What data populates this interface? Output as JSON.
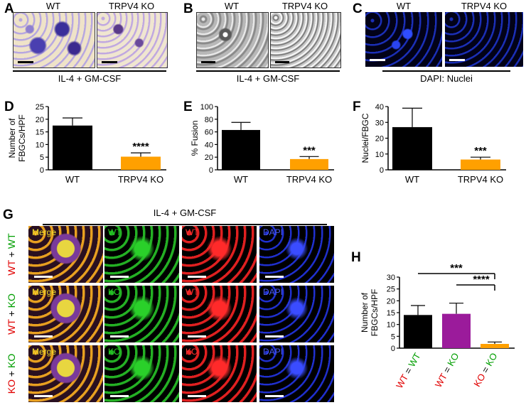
{
  "panels": {
    "A": {
      "label": "A",
      "titles": [
        "WT",
        "TRPV4 KO"
      ],
      "caption": "IL-4 + GM-CSF"
    },
    "B": {
      "label": "B",
      "titles": [
        "WT",
        "TRPV4 KO"
      ],
      "caption": "IL-4 + GM-CSF"
    },
    "C": {
      "label": "C",
      "titles": [
        "WT",
        "TRPV4 KO"
      ],
      "caption": "DAPI: Nuclei"
    },
    "D": {
      "label": "D"
    },
    "E": {
      "label": "E"
    },
    "F": {
      "label": "F"
    },
    "G": {
      "label": "G",
      "caption": "IL-4 + GM-CSF",
      "rows": [
        {
          "left": "WT",
          "plus": " + ",
          "right": "WT",
          "channels": [
            "Merge",
            "WT",
            "WT",
            "DAPI"
          ]
        },
        {
          "left": "WT",
          "plus": " + ",
          "right": "KO",
          "channels": [
            "Merge",
            "KO",
            "WT",
            "DAPI"
          ]
        },
        {
          "left": "KO",
          "plus": " + ",
          "right": "KO",
          "channels": [
            "Merge",
            "KO",
            "KO",
            "DAPI"
          ]
        }
      ]
    },
    "H": {
      "label": "H"
    }
  },
  "colors": {
    "wt_bar": "#000000",
    "ko_bar": "#ffa000",
    "mixed_bar": "#9b1b9b",
    "red_label": "#e00000",
    "green_label": "#009e00"
  },
  "chart_data": [
    {
      "id": "D",
      "type": "bar",
      "categories": [
        "WT",
        "TRPV4 KO"
      ],
      "values": [
        17.5,
        5.2
      ],
      "errors": [
        3,
        1.5
      ],
      "ylabel": "Number of FBGCs/HPF",
      "ylim": [
        0,
        25
      ],
      "yticks": [
        0,
        5,
        10,
        15,
        20,
        25
      ],
      "significance": "****"
    },
    {
      "id": "E",
      "type": "bar",
      "categories": [
        "WT",
        "TRPV4 KO"
      ],
      "values": [
        63,
        17
      ],
      "errors": [
        12,
        4
      ],
      "ylabel": "% Fusion",
      "ylim": [
        0,
        100
      ],
      "yticks": [
        0,
        20,
        40,
        60,
        80,
        100
      ],
      "significance": "***"
    },
    {
      "id": "F",
      "type": "bar",
      "categories": [
        "WT",
        "TRPV4 KO"
      ],
      "values": [
        27,
        6.5
      ],
      "errors": [
        12,
        1.5
      ],
      "ylabel": "Nuclei/FBGC",
      "ylim": [
        0,
        40
      ],
      "yticks": [
        0,
        10,
        20,
        30,
        40
      ],
      "significance": "***"
    },
    {
      "id": "H",
      "type": "bar",
      "categories": [
        "WT = WT",
        "WT = KO",
        "KO = KO"
      ],
      "values": [
        14,
        14.5,
        1.8
      ],
      "errors": [
        4,
        4.5,
        0.8
      ],
      "ylabel": "Number of FBGCs/HPF",
      "ylim": [
        0,
        30
      ],
      "yticks": [
        0,
        5,
        10,
        15,
        20,
        25,
        30
      ],
      "significance_brackets": [
        {
          "from": "WT = WT",
          "to": "KO = KO",
          "label": "***"
        },
        {
          "from": "WT = KO",
          "to": "KO = KO",
          "label": "****"
        }
      ]
    }
  ]
}
